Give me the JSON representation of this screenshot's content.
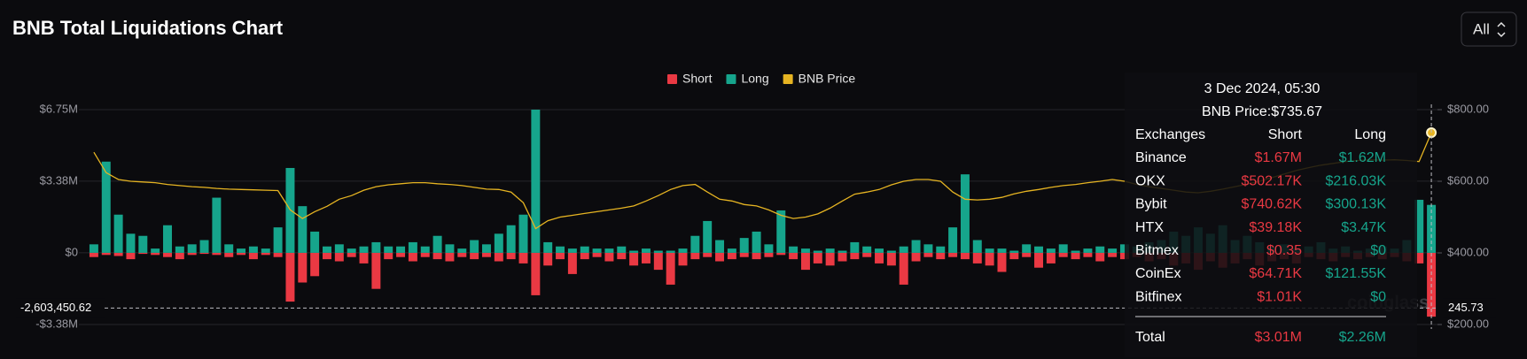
{
  "chart_data": {
    "type": "bar-line",
    "title": "BNB Total Liquidations Chart",
    "range_button": "All",
    "series": [
      {
        "name": "Short",
        "color": "#ea3943",
        "values": [
          -200000,
          -100000,
          -150000,
          -300000,
          -50000,
          -100000,
          -200000,
          -300000,
          -100000,
          -50000,
          -100000,
          -200000,
          -100000,
          -300000,
          -100000,
          -200000,
          -2300000,
          -1400000,
          -1100000,
          -300000,
          -400000,
          -200000,
          -500000,
          -1700000,
          -300000,
          -200000,
          -400000,
          -200000,
          -300000,
          -400000,
          -200000,
          -300000,
          -200000,
          -400000,
          -300000,
          -500000,
          -2000000,
          -600000,
          -300000,
          -1000000,
          -300000,
          -200000,
          -400000,
          -300000,
          -600000,
          -500000,
          -800000,
          -1500000,
          -600000,
          -300000,
          -200000,
          -400000,
          -300000,
          -200000,
          -300000,
          -200000,
          -100000,
          -300000,
          -800000,
          -500000,
          -600000,
          -400000,
          -300000,
          -200000,
          -500000,
          -600000,
          -1500000,
          -400000,
          -200000,
          -300000,
          -200000,
          -300000,
          -500000,
          -600000,
          -900000,
          -300000,
          -200000,
          -700000,
          -500000,
          -200000,
          -300000,
          -200000,
          -400000,
          -200000,
          -300000,
          -200000,
          -400000,
          -300000,
          -600000,
          -500000,
          -800000,
          -400000,
          -700000,
          -500000,
          -300000,
          -600000,
          -400000,
          -300000,
          -500000,
          -200000,
          -300000,
          -400000,
          -200000,
          -300000,
          -200000,
          -300000,
          -200000,
          -400000,
          -500000,
          -3010000
        ]
      },
      {
        "name": "Long",
        "color": "#16a58c",
        "values": [
          400000,
          4300000,
          1800000,
          900000,
          800000,
          200000,
          1300000,
          300000,
          400000,
          600000,
          2600000,
          400000,
          200000,
          300000,
          200000,
          1200000,
          4000000,
          2200000,
          1000000,
          300000,
          400000,
          200000,
          300000,
          500000,
          300000,
          300000,
          500000,
          300000,
          800000,
          400000,
          200000,
          600000,
          400000,
          900000,
          1300000,
          1800000,
          6750000,
          500000,
          300000,
          200000,
          300000,
          200000,
          200000,
          300000,
          100000,
          200000,
          100000,
          100000,
          200000,
          800000,
          1500000,
          600000,
          200000,
          700000,
          1000000,
          400000,
          2000000,
          300000,
          200000,
          100000,
          200000,
          100000,
          500000,
          300000,
          200000,
          100000,
          300000,
          600000,
          400000,
          300000,
          1200000,
          3700000,
          600000,
          200000,
          200000,
          100000,
          400000,
          300000,
          200000,
          400000,
          100000,
          200000,
          300000,
          200000,
          400000,
          300000,
          500000,
          600000,
          1000000,
          800000,
          1200000,
          900000,
          1300000,
          600000,
          800000,
          500000,
          300000,
          400000,
          200000,
          300000,
          500000,
          200000,
          300000,
          100000,
          200000,
          300000,
          200000,
          600000,
          2500000,
          2260000
        ]
      },
      {
        "name": "BNB Price",
        "color": "#e6b422",
        "axis": "y2",
        "values": [
          681,
          624,
          605,
          600,
          598,
          596,
          591,
          588,
          585,
          583,
          580,
          578,
          577,
          576,
          575,
          574,
          520,
          496,
          515,
          530,
          550,
          560,
          575,
          585,
          590,
          593,
          596,
          596,
          593,
          591,
          588,
          583,
          578,
          577,
          570,
          540,
          468,
          490,
          500,
          505,
          510,
          515,
          520,
          525,
          531,
          545,
          560,
          577,
          588,
          591,
          570,
          550,
          545,
          535,
          531,
          520,
          505,
          496,
          500,
          509,
          525,
          545,
          564,
          570,
          577,
          590,
          600,
          605,
          605,
          600,
          570,
          550,
          548,
          550,
          555,
          565,
          572,
          577,
          583,
          588,
          591,
          596,
          600,
          605,
          600,
          591,
          585,
          580,
          575,
          570,
          568,
          572,
          578,
          585,
          592,
          600,
          610,
          620,
          630,
          638,
          645,
          650,
          655,
          658,
          660,
          659,
          660,
          658,
          655,
          735.67
        ]
      }
    ],
    "ylim": [
      -3380000,
      6750000
    ],
    "yticks": [
      {
        "value": -3380000,
        "label": "-$3.38M"
      },
      {
        "value": 0,
        "label": "$0"
      },
      {
        "value": 3380000,
        "label": "$3.38M"
      },
      {
        "value": 6750000,
        "label": "$6.75M"
      }
    ],
    "y2lim": [
      200,
      800
    ],
    "y2ticks": [
      {
        "value": 200,
        "label": "$200.00"
      },
      {
        "value": 400,
        "label": "$400.00"
      },
      {
        "value": 600,
        "label": "$600.00"
      },
      {
        "value": 800,
        "label": "$800.00"
      }
    ],
    "crosshair": {
      "y": {
        "value": -2603450.62,
        "label": "-2,603,450.62"
      },
      "y2": 245.73
    },
    "watermark": "coinglass",
    "tooltip": {
      "date": "3 Dec 2024, 05:30",
      "price": "BNB Price:$735.67",
      "headers": [
        "Exchanges",
        "Short",
        "Long"
      ],
      "rows": [
        [
          "Binance",
          "$1.67M",
          "$1.62M"
        ],
        [
          "OKX",
          "$502.17K",
          "$216.03K"
        ],
        [
          "Bybit",
          "$740.62K",
          "$300.13K"
        ],
        [
          "HTX",
          "$39.18K",
          "$3.47K"
        ],
        [
          "Bitmex",
          "$0.35",
          "$0"
        ],
        [
          "CoinEx",
          "$64.71K",
          "$121.55K"
        ],
        [
          "Bitfinex",
          "$1.01K",
          "$0"
        ]
      ],
      "total": [
        "Total",
        "$3.01M",
        "$2.26M"
      ]
    }
  }
}
